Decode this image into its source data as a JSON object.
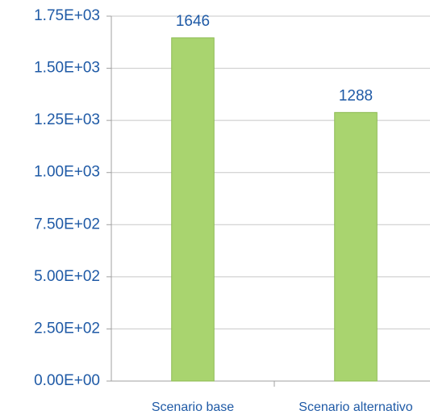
{
  "chart_data": {
    "type": "bar",
    "categories": [
      "Scenario base",
      "Scenario alternativo"
    ],
    "values": [
      1646,
      1288
    ],
    "color": "#a9d46f",
    "ylim": [
      0,
      1750
    ],
    "yticks": [
      {
        "value": 0,
        "label": "0.00E+00"
      },
      {
        "value": 250,
        "label": "2.50E+02"
      },
      {
        "value": 500,
        "label": "5.00E+02"
      },
      {
        "value": 750,
        "label": "7.50E+02"
      },
      {
        "value": 1000,
        "label": "1.00E+03"
      },
      {
        "value": 1250,
        "label": "1.25E+03"
      },
      {
        "value": 1500,
        "label": "1.50E+03"
      },
      {
        "value": 1750,
        "label": "1.75E+03"
      }
    ],
    "grid": true
  }
}
